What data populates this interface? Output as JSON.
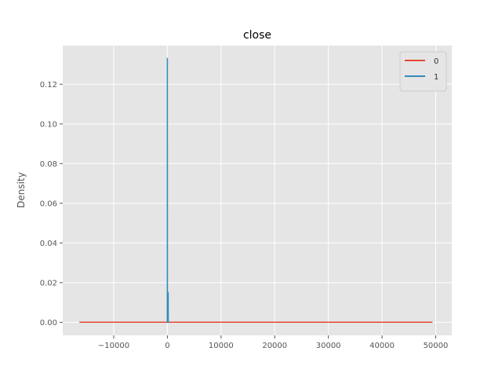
{
  "chart_data": {
    "type": "line",
    "title": "close",
    "xlabel": "",
    "ylabel": "Density",
    "xlim": [
      -19500,
      53000
    ],
    "ylim": [
      -0.0066,
      0.1395
    ],
    "xticks": [
      -10000,
      0,
      10000,
      20000,
      30000,
      40000,
      50000
    ],
    "xtick_labels": [
      "−10000",
      "0",
      "10000",
      "20000",
      "30000",
      "40000",
      "50000"
    ],
    "yticks": [
      0.0,
      0.02,
      0.04,
      0.06,
      0.08,
      0.1,
      0.12
    ],
    "ytick_labels": [
      "0.00",
      "0.02",
      "0.04",
      "0.06",
      "0.08",
      "0.10",
      "0.12"
    ],
    "grid": true,
    "legend_position": "top-right",
    "series": [
      {
        "name": "0",
        "color": "#E24A33",
        "x": [
          -16400,
          0,
          10000,
          20000,
          30000,
          40000,
          49400
        ],
        "y": [
          3e-05,
          3e-05,
          3e-05,
          3e-05,
          3e-05,
          3e-05,
          3e-05
        ]
      },
      {
        "name": "1",
        "color": "#348ABD",
        "x": [
          -60,
          -30,
          -15,
          -8,
          -4,
          0,
          4,
          8,
          15,
          30,
          60,
          120,
          200,
          260
        ],
        "y": [
          0.0,
          0.0,
          0.001,
          0.02,
          0.09,
          0.133,
          0.09,
          0.02,
          0.001,
          0.0,
          0.0,
          0.0,
          0.0,
          0.0
        ]
      },
      {
        "name": "",
        "color": "#348ABD",
        "x": [
          130,
          145,
          150,
          155,
          170
        ],
        "y": [
          0.0,
          0.004,
          0.015,
          0.004,
          0.0
        ]
      }
    ]
  }
}
